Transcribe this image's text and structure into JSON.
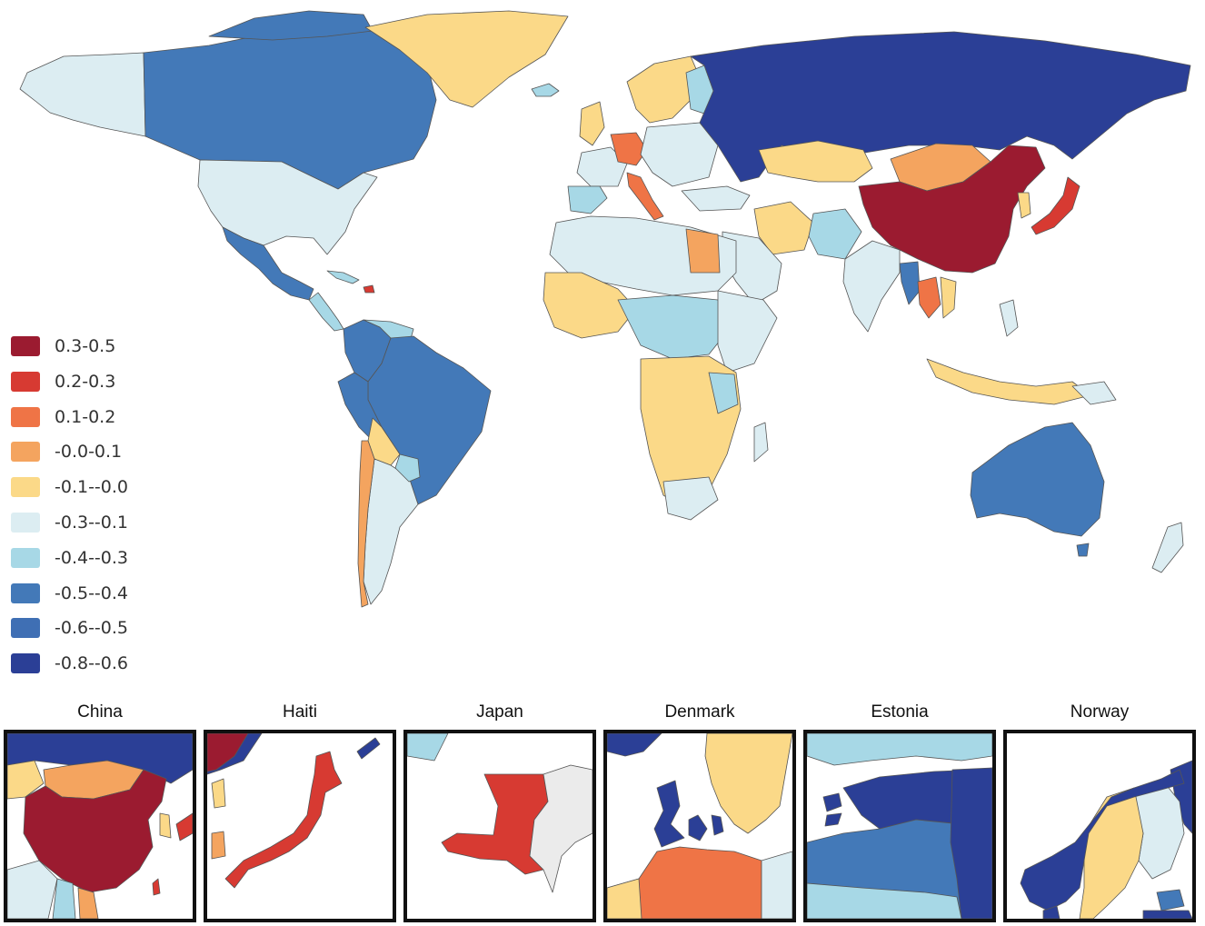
{
  "colors": {
    "c1": "#9b1b30",
    "c2": "#d73a32",
    "c3": "#ef7446",
    "c4": "#f4a45f",
    "c5": "#fbd988",
    "c6": "#dcedf2",
    "c7": "#a7d8e6",
    "c8": "#4379b8",
    "c9": "#3f6fb4",
    "c10": "#2b3f96",
    "nodata": "#ebebeb"
  },
  "legend": [
    {
      "label": "0.3-0.5",
      "color": "#9b1b30"
    },
    {
      "label": "0.2-0.3",
      "color": "#d73a32"
    },
    {
      "label": "0.1-0.2",
      "color": "#ef7446"
    },
    {
      "label": "-0.0-0.1",
      "color": "#f4a45f"
    },
    {
      "label": "-0.1--0.0",
      "color": "#fbd988"
    },
    {
      "label": "-0.3--0.1",
      "color": "#dcedf2"
    },
    {
      "label": "-0.4--0.3",
      "color": "#a7d8e6"
    },
    {
      "label": "-0.5--0.4",
      "color": "#4379b8"
    },
    {
      "label": "-0.6--0.5",
      "color": "#3f6fb4"
    },
    {
      "label": "-0.8--0.6",
      "color": "#2b3f96"
    }
  ],
  "insets": [
    {
      "title": "China"
    },
    {
      "title": "Haiti"
    },
    {
      "title": "Japan"
    },
    {
      "title": "Denmark"
    },
    {
      "title": "Estonia"
    },
    {
      "title": "Norway"
    }
  ]
}
